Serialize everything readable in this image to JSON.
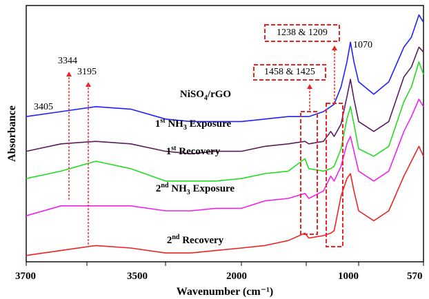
{
  "chart_data": {
    "type": "line",
    "title": "",
    "xlabel": "Wavenumber (cm⁻¹)",
    "ylabel": "Absorbance",
    "x_reversed": true,
    "x_axis_note": "split / non-linear wavenumber axis",
    "x_ticks": [
      "3700",
      "3500",
      "2000",
      "1000",
      "570"
    ],
    "series": [
      {
        "name": "NiSO₄/rGO",
        "color": "#1f1fff",
        "x": [
          3700,
          3650,
          3600,
          3550,
          3500,
          3000,
          2500,
          2000,
          1800,
          1600,
          1458,
          1425,
          1300,
          1238,
          1209,
          1150,
          1100,
          1070,
          1040,
          1000,
          900,
          800,
          700,
          650,
          600,
          570
        ],
        "y": [
          0.58,
          0.6,
          0.62,
          0.61,
          0.57,
          0.56,
          0.56,
          0.56,
          0.57,
          0.58,
          0.58,
          0.58,
          0.6,
          0.62,
          0.63,
          0.7,
          0.8,
          0.88,
          0.8,
          0.72,
          0.67,
          0.72,
          0.86,
          0.9,
          0.99,
          0.96
        ]
      },
      {
        "name": "1st NH₃ Exposure",
        "color": "#5b1a5b",
        "x": [
          3700,
          3650,
          3600,
          3550,
          3500,
          3000,
          2500,
          2000,
          1800,
          1600,
          1458,
          1425,
          1300,
          1238,
          1209,
          1150,
          1100,
          1070,
          1040,
          1000,
          900,
          800,
          700,
          650,
          600,
          570
        ],
        "y": [
          0.44,
          0.47,
          0.48,
          0.47,
          0.44,
          0.43,
          0.44,
          0.44,
          0.46,
          0.47,
          0.48,
          0.47,
          0.48,
          0.52,
          0.5,
          0.55,
          0.66,
          0.73,
          0.65,
          0.56,
          0.52,
          0.56,
          0.74,
          0.78,
          0.86,
          0.84
        ]
      },
      {
        "name": "1st Recovery",
        "color": "#22dd22",
        "x": [
          3700,
          3650,
          3600,
          3550,
          3500,
          3000,
          2500,
          2000,
          1800,
          1600,
          1458,
          1425,
          1300,
          1238,
          1209,
          1150,
          1100,
          1070,
          1040,
          1000,
          900,
          800,
          700,
          650,
          600,
          570
        ],
        "y": [
          0.33,
          0.36,
          0.4,
          0.37,
          0.32,
          0.32,
          0.32,
          0.33,
          0.35,
          0.36,
          0.41,
          0.37,
          0.36,
          0.37,
          0.38,
          0.45,
          0.57,
          0.62,
          0.55,
          0.45,
          0.42,
          0.46,
          0.64,
          0.7,
          0.8,
          0.75
        ]
      },
      {
        "name": "2nd NH₃ Exposure",
        "color": "#ee22ee",
        "x": [
          3700,
          3650,
          3600,
          3550,
          3500,
          3000,
          2500,
          2000,
          1800,
          1600,
          1458,
          1425,
          1300,
          1238,
          1209,
          1150,
          1100,
          1070,
          1040,
          1000,
          900,
          800,
          700,
          650,
          600,
          570
        ],
        "y": [
          0.18,
          0.22,
          0.22,
          0.22,
          0.2,
          0.2,
          0.21,
          0.21,
          0.24,
          0.25,
          0.27,
          0.25,
          0.28,
          0.34,
          0.32,
          0.38,
          0.47,
          0.5,
          0.44,
          0.36,
          0.32,
          0.36,
          0.52,
          0.58,
          0.65,
          0.62
        ]
      },
      {
        "name": "2nd Recovery",
        "color": "#ee2222",
        "x": [
          3700,
          3650,
          3600,
          3550,
          3500,
          3000,
          2500,
          2000,
          1800,
          1600,
          1458,
          1425,
          1300,
          1238,
          1209,
          1150,
          1100,
          1070,
          1040,
          1000,
          900,
          800,
          700,
          650,
          600,
          570
        ],
        "y": [
          0.02,
          0.04,
          0.06,
          0.05,
          0.03,
          0.03,
          0.04,
          0.05,
          0.06,
          0.08,
          0.11,
          0.09,
          0.1,
          0.11,
          0.12,
          0.26,
          0.33,
          0.35,
          0.28,
          0.2,
          0.16,
          0.2,
          0.34,
          0.4,
          0.46,
          0.42
        ]
      }
    ],
    "series_labels": [
      {
        "series": 0,
        "text": "NiSO",
        "sub": "4",
        "rest": "/rGO"
      },
      {
        "series": 1,
        "text": "1",
        "sup": "st",
        "rest": " NH",
        "sub2": "3",
        "rest2": " Exposure"
      },
      {
        "series": 2,
        "text": "1",
        "sup": "st",
        "rest": " Recovery"
      },
      {
        "series": 3,
        "text": "2",
        "sup": "nd",
        "rest": " NH",
        "sub2": "3",
        "rest2": " Exposure"
      },
      {
        "series": 4,
        "text": "2",
        "sup": "nd",
        "rest": " Recovery"
      }
    ],
    "annotations": [
      {
        "text": "3405",
        "x": 3405
      },
      {
        "text": "3344",
        "x": 3344,
        "arrow": true
      },
      {
        "text": "3195",
        "x": 3195,
        "arrow": true
      },
      {
        "text": "1458 & 1425",
        "x": 1440,
        "boxed": true,
        "arrow": true
      },
      {
        "text": "1238 & 1209",
        "x": 1220,
        "boxed": true,
        "arrow": true
      },
      {
        "text": "1070",
        "x": 1070
      }
    ]
  }
}
